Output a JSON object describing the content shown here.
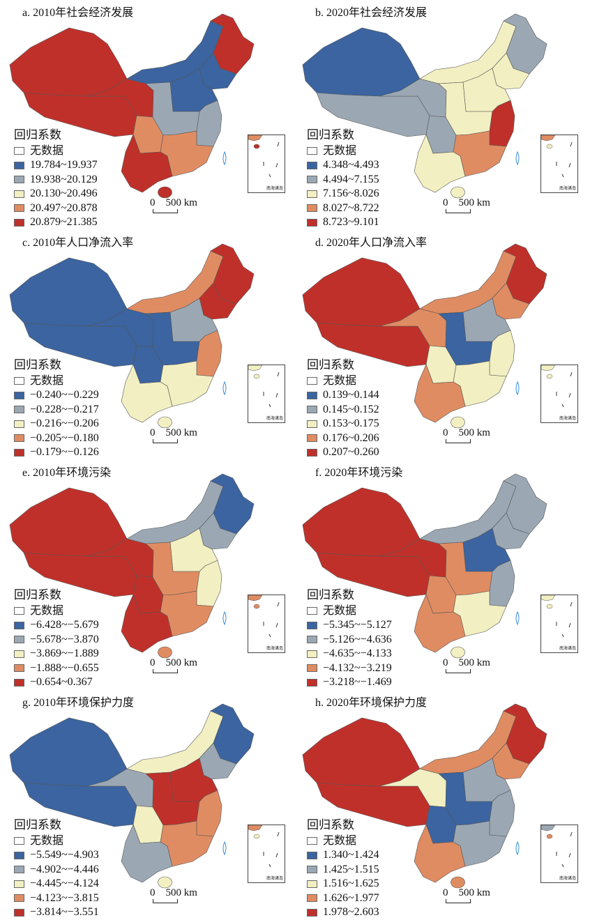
{
  "colors": [
    "#3b64a0",
    "#9ba8b4",
    "#f2efc2",
    "#e08c62",
    "#c0302a"
  ],
  "nodata_color": "#ffffff",
  "legend_title": "回归系数",
  "nodata_label": "无数据",
  "scale_label": "0    500 km",
  "inset_label": "南海诸岛",
  "panels": [
    {
      "title": "a. 2010年社会经济发展",
      "classes": [
        "19.784~19.937",
        "19.938~20.129",
        "20.130~20.496",
        "20.497~20.878",
        "20.879~21.385"
      ],
      "regions": {
        "xinjiang": 4,
        "tibet": 4,
        "qinghai": 4,
        "inner_mongolia": 0,
        "northeast": 4,
        "liaoning_jilin": 0,
        "north": 0,
        "central": 1,
        "sichuan": 3,
        "east": 1,
        "south": 3,
        "southwest": 4,
        "hainan": 4
      }
    },
    {
      "title": "b. 2020年社会经济发展",
      "classes": [
        "4.348~4.493",
        "4.494~7.155",
        "7.156~8.026",
        "8.027~8.722",
        "8.723~9.101"
      ],
      "regions": {
        "xinjiang": 0,
        "tibet": 1,
        "qinghai": 1,
        "inner_mongolia": 2,
        "northeast": 1,
        "liaoning_jilin": 2,
        "north": 2,
        "central": 2,
        "sichuan": 1,
        "east": 4,
        "south": 3,
        "southwest": 2,
        "hainan": 2
      }
    },
    {
      "title": "c. 2010年人口净流入率",
      "classes": [
        "−0.240~−0.229",
        "−0.228~−0.217",
        "−0.216~−0.206",
        "−0.205~−0.180",
        "−0.179~−0.126"
      ],
      "regions": {
        "xinjiang": 0,
        "tibet": 0,
        "qinghai": 0,
        "inner_mongolia": 3,
        "northeast": 4,
        "liaoning_jilin": 4,
        "north": 1,
        "central": 0,
        "sichuan": 0,
        "east": 3,
        "south": 2,
        "southwest": 2,
        "hainan": 2
      }
    },
    {
      "title": "d. 2020年人口净流入率",
      "classes": [
        "0.139~0.144",
        "0.145~0.152",
        "0.153~0.175",
        "0.176~0.206",
        "0.207~0.260"
      ],
      "regions": {
        "xinjiang": 4,
        "tibet": 4,
        "qinghai": 3,
        "inner_mongolia": 3,
        "northeast": 4,
        "liaoning_jilin": 3,
        "north": 1,
        "central": 0,
        "sichuan": 2,
        "east": 2,
        "south": 2,
        "southwest": 3,
        "hainan": 2
      }
    },
    {
      "title": "e. 2010年环境污染",
      "classes": [
        "−6.428~−5.679",
        "−5.678~−3.870",
        "−3.869~−1.889",
        "−1.888~−0.655",
        "−0.654~0.367"
      ],
      "regions": {
        "xinjiang": 4,
        "tibet": 4,
        "qinghai": 4,
        "inner_mongolia": 1,
        "northeast": 0,
        "liaoning_jilin": 1,
        "north": 2,
        "central": 3,
        "sichuan": 4,
        "east": 2,
        "south": 3,
        "southwest": 4,
        "hainan": 3
      }
    },
    {
      "title": "f. 2020年环境污染",
      "classes": [
        "−5.345~−5.127",
        "−5.126~−4.636",
        "−4.635~−4.133",
        "−4.132~−3.219",
        "−3.218~−1.469"
      ],
      "regions": {
        "xinjiang": 4,
        "tibet": 4,
        "qinghai": 4,
        "inner_mongolia": 1,
        "northeast": 1,
        "liaoning_jilin": 1,
        "north": 0,
        "central": 3,
        "sichuan": 3,
        "east": 1,
        "south": 2,
        "southwest": 3,
        "hainan": 2
      }
    },
    {
      "title": "g. 2010年环境保护力度",
      "classes": [
        "−5.549~−4.903",
        "−4.902~−4.446",
        "−4.445~−4.124",
        "−4.123~−3.815",
        "−3.814~−3.551"
      ],
      "regions": {
        "xinjiang": 0,
        "tibet": 0,
        "qinghai": 1,
        "inner_mongolia": 2,
        "northeast": 0,
        "liaoning_jilin": 1,
        "north": 4,
        "central": 4,
        "sichuan": 2,
        "east": 3,
        "south": 3,
        "southwest": 1,
        "hainan": 2
      }
    },
    {
      "title": "h. 2020年环境保护力度",
      "classes": [
        "1.340~1.424",
        "1.425~1.515",
        "1.516~1.625",
        "1.626~1.977",
        "1.978~2.603"
      ],
      "regions": {
        "xinjiang": 4,
        "tibet": 4,
        "qinghai": 2,
        "inner_mongolia": 3,
        "northeast": 4,
        "liaoning_jilin": 3,
        "north": 1,
        "central": 0,
        "sichuan": 0,
        "east": 1,
        "south": 1,
        "southwest": 3,
        "hainan": 3
      }
    }
  ]
}
